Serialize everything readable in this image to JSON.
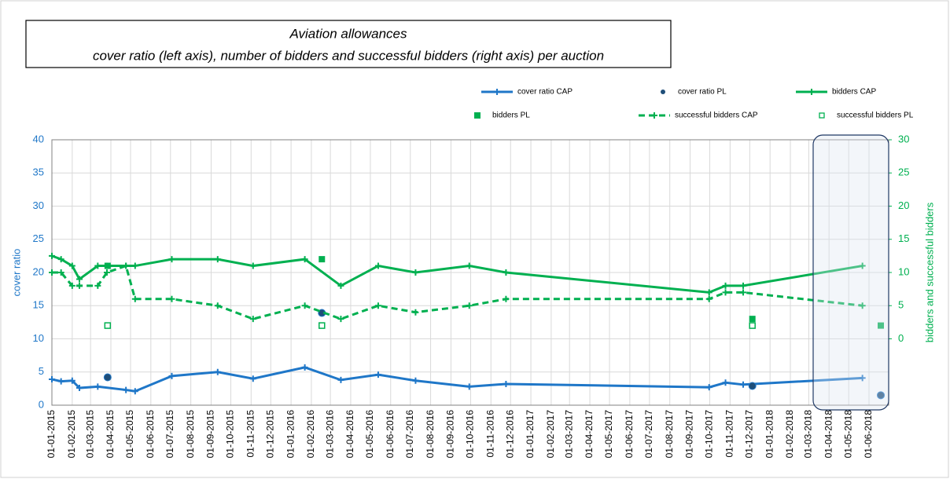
{
  "chart_data": {
    "type": "line",
    "title": "Aviation allowances",
    "subtitle": "cover ratio (left axis), number of bidders and successful bidders (right axis) per auction",
    "ylabel": "cover ratio",
    "y2label": "bidders and successful bidders",
    "xlim": [
      "01-01-2015",
      "01-07-2018"
    ],
    "xticks": [
      "01-01-2015",
      "01-02-2015",
      "01-03-2015",
      "01-04-2015",
      "01-05-2015",
      "01-06-2015",
      "01-07-2015",
      "01-08-2015",
      "01-09-2015",
      "01-10-2015",
      "01-11-2015",
      "01-12-2015",
      "01-01-2016",
      "01-02-2016",
      "01-03-2016",
      "01-04-2016",
      "01-05-2016",
      "01-06-2016",
      "01-07-2016",
      "01-08-2016",
      "01-09-2016",
      "01-10-2016",
      "01-11-2016",
      "01-12-2016",
      "01-01-2017",
      "01-02-2017",
      "01-03-2017",
      "01-04-2017",
      "01-05-2017",
      "01-06-2017",
      "01-07-2017",
      "01-08-2017",
      "01-09-2017",
      "01-10-2017",
      "01-11-2017",
      "01-12-2017",
      "01-01-2018",
      "01-02-2018",
      "01-03-2018",
      "01-04-2018",
      "01-05-2018",
      "01-06-2018"
    ],
    "ylim": [
      0,
      40
    ],
    "yticks": [
      0,
      5,
      10,
      15,
      20,
      25,
      30,
      35,
      40
    ],
    "y2lim": [
      -10,
      30
    ],
    "y2ticks": [
      0,
      5,
      10,
      15,
      20,
      25,
      30
    ],
    "grid": true,
    "series": [
      {
        "name": "cover ratio CAP",
        "color": "#1f77c8",
        "style": "line",
        "x": [
          "01-01-2015",
          "15-01-2015",
          "01-02-2015",
          "12-02-2015",
          "12-03-2015",
          "24-04-2015",
          "08-05-2015",
          "03-07-2015",
          "11-09-2015",
          "04-11-2015",
          "22-01-2016",
          "17-03-2016",
          "13-05-2016",
          "09-07-2016",
          "29-09-2016",
          "24-11-2016",
          "30-09-2017",
          "25-10-2017",
          "21-11-2017",
          "22-05-2018"
        ],
        "values": [
          3.9,
          3.6,
          3.7,
          2.6,
          2.8,
          2.3,
          2.1,
          4.4,
          5.0,
          4.0,
          5.7,
          3.8,
          4.6,
          3.7,
          2.8,
          3.2,
          2.7,
          3.4,
          3.1,
          4.1
        ]
      },
      {
        "name": "cover ratio PL",
        "color": "#1f4e79",
        "style": "dot",
        "x": [
          "27-03-2015",
          "17-02-2016",
          "05-12-2017",
          "19-06-2018"
        ],
        "values": [
          4.2,
          13.9,
          2.9,
          1.5
        ]
      },
      {
        "name": "bidders CAP",
        "color": "#00b050",
        "style": "line",
        "axis": "y2",
        "x": [
          "01-01-2015",
          "15-01-2015",
          "01-02-2015",
          "12-02-2015",
          "12-03-2015",
          "26-03-2015",
          "24-04-2015",
          "08-05-2015",
          "03-07-2015",
          "11-09-2015",
          "04-11-2015",
          "22-01-2016",
          "17-03-2016",
          "13-05-2016",
          "09-07-2016",
          "29-09-2016",
          "24-11-2016",
          "30-09-2017",
          "25-10-2017",
          "21-11-2017",
          "22-05-2018"
        ],
        "values": [
          12.5,
          12,
          11,
          9,
          11,
          11,
          11,
          11,
          12,
          12,
          11,
          12,
          8,
          11,
          10,
          11,
          10,
          7,
          8,
          8,
          11
        ]
      },
      {
        "name": "bidders PL",
        "color": "#00b050",
        "style": "square",
        "axis": "y2",
        "x": [
          "27-03-2015",
          "17-02-2016",
          "05-12-2017",
          "19-06-2018"
        ],
        "values": [
          11,
          12,
          3,
          2
        ]
      },
      {
        "name": "successful bidders CAP",
        "color": "#00b050",
        "style": "dashed",
        "axis": "y2",
        "x": [
          "01-01-2015",
          "15-01-2015",
          "01-02-2015",
          "12-02-2015",
          "12-03-2015",
          "26-03-2015",
          "24-04-2015",
          "08-05-2015",
          "03-07-2015",
          "11-09-2015",
          "04-11-2015",
          "22-01-2016",
          "17-03-2016",
          "13-05-2016",
          "09-07-2016",
          "29-09-2016",
          "24-11-2016",
          "30-09-2017",
          "25-10-2017",
          "21-11-2017",
          "22-05-2018"
        ],
        "values": [
          10,
          10,
          8,
          8,
          8,
          10,
          11,
          6,
          6,
          5,
          3,
          5,
          3,
          5,
          4,
          5,
          6,
          6,
          7,
          7,
          5
        ]
      },
      {
        "name": "successful bidders PL",
        "color": "#00b050",
        "style": "hollow-square",
        "axis": "y2",
        "x": [
          "27-03-2015",
          "17-02-2016",
          "05-12-2017"
        ],
        "values": [
          2,
          2,
          2
        ]
      }
    ]
  }
}
